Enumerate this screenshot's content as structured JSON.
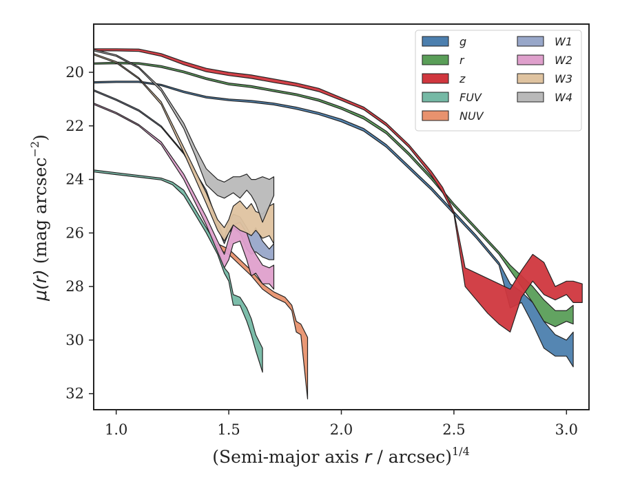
{
  "chart_data": {
    "type": "area",
    "x_label_prefix": "(Semi-major axis ",
    "x_label_var": "r",
    "x_label_suffix": " / arcsec)",
    "x_label_exp": "1/4",
    "y_label_prefix": "μ(",
    "y_label_var": "r",
    "y_label_suffix": ") (mag arcsec",
    "y_label_exp": "−2",
    "y_label_close": ")",
    "xlim": [
      0.9,
      3.1
    ],
    "ylim": [
      32.6,
      18.2
    ],
    "x_ticks": [
      1.0,
      1.5,
      2.0,
      2.5,
      3.0
    ],
    "x_tick_labels": [
      "1.0",
      "1.5",
      "2.0",
      "2.5",
      "3.0"
    ],
    "y_ticks": [
      20,
      22,
      24,
      26,
      28,
      30,
      32
    ],
    "y_tick_labels": [
      "20",
      "22",
      "24",
      "26",
      "28",
      "30",
      "32"
    ],
    "y_inverted": true,
    "grid": false,
    "legend_position": "top-right",
    "legend_columns": 2,
    "series": [
      {
        "name": "g",
        "color": "#4c7fae",
        "x": [
          0.9,
          1.0,
          1.1,
          1.2,
          1.3,
          1.4,
          1.5,
          1.6,
          1.7,
          1.8,
          1.9,
          2.0,
          2.1,
          2.2,
          2.3,
          2.4,
          2.5,
          2.6,
          2.7,
          2.75,
          2.8,
          2.85,
          2.9,
          2.95,
          3.0,
          3.03
        ],
        "lower": [
          20.35,
          20.33,
          20.33,
          20.45,
          20.7,
          20.9,
          21.0,
          21.05,
          21.15,
          21.3,
          21.5,
          21.75,
          22.1,
          22.7,
          23.5,
          24.3,
          25.2,
          26.1,
          27.1,
          27.9,
          28.2,
          28.6,
          29.3,
          29.8,
          30.0,
          29.7
        ],
        "upper": [
          20.4,
          20.38,
          20.38,
          20.5,
          20.76,
          20.96,
          21.06,
          21.12,
          21.22,
          21.38,
          21.58,
          21.85,
          22.2,
          22.8,
          23.6,
          24.4,
          25.3,
          26.2,
          27.2,
          28.8,
          28.6,
          29.4,
          30.3,
          30.6,
          30.6,
          31.0
        ]
      },
      {
        "name": "r",
        "color": "#5a9e58",
        "x": [
          0.9,
          1.0,
          1.1,
          1.2,
          1.3,
          1.4,
          1.5,
          1.6,
          1.7,
          1.8,
          1.9,
          2.0,
          2.1,
          2.2,
          2.3,
          2.4,
          2.5,
          2.6,
          2.7,
          2.75,
          2.8,
          2.85,
          2.9,
          2.95,
          3.0,
          3.03
        ],
        "lower": [
          19.65,
          19.62,
          19.64,
          19.75,
          19.95,
          20.2,
          20.4,
          20.5,
          20.65,
          20.8,
          21.0,
          21.3,
          21.65,
          22.2,
          23.0,
          23.9,
          24.9,
          25.8,
          26.7,
          27.2,
          27.6,
          28.0,
          28.5,
          28.9,
          28.9,
          28.7
        ],
        "upper": [
          19.7,
          19.68,
          19.7,
          19.82,
          20.02,
          20.27,
          20.47,
          20.57,
          20.72,
          20.87,
          21.08,
          21.38,
          21.75,
          22.3,
          23.1,
          24.0,
          25.0,
          25.9,
          26.8,
          27.4,
          28.0,
          28.6,
          29.3,
          29.5,
          29.3,
          29.4
        ]
      },
      {
        "name": "z",
        "color": "#d0373e",
        "x": [
          0.9,
          1.0,
          1.1,
          1.2,
          1.3,
          1.4,
          1.5,
          1.6,
          1.7,
          1.8,
          1.9,
          2.0,
          2.1,
          2.2,
          2.3,
          2.4,
          2.45,
          2.5,
          2.55,
          2.6,
          2.65,
          2.7,
          2.75,
          2.8,
          2.85,
          2.9,
          2.95,
          3.0,
          3.03,
          3.07
        ],
        "lower": [
          19.12,
          19.12,
          19.13,
          19.3,
          19.6,
          19.85,
          20.0,
          20.1,
          20.25,
          20.4,
          20.6,
          20.95,
          21.3,
          21.9,
          22.7,
          23.7,
          24.3,
          25.2,
          27.3,
          27.5,
          27.7,
          27.9,
          28.1,
          27.4,
          26.8,
          27.1,
          28.0,
          27.8,
          27.8,
          27.9
        ],
        "upper": [
          19.2,
          19.2,
          19.22,
          19.4,
          19.72,
          19.98,
          20.12,
          20.23,
          20.38,
          20.52,
          20.72,
          21.05,
          21.4,
          22.0,
          22.8,
          23.85,
          24.5,
          25.3,
          28.0,
          28.5,
          29.0,
          29.4,
          29.7,
          28.4,
          27.8,
          28.3,
          28.5,
          28.3,
          28.6,
          28.6
        ]
      },
      {
        "name": "FUV",
        "color": "#75b9a5",
        "x": [
          0.9,
          1.0,
          1.1,
          1.2,
          1.25,
          1.3,
          1.35,
          1.4,
          1.45,
          1.48,
          1.5,
          1.52,
          1.55,
          1.58,
          1.6,
          1.62,
          1.65
        ],
        "lower": [
          23.65,
          23.75,
          23.85,
          23.95,
          24.1,
          24.4,
          25.1,
          25.8,
          26.5,
          27.3,
          27.5,
          28.3,
          28.4,
          28.8,
          29.2,
          29.8,
          30.3
        ],
        "upper": [
          23.72,
          23.82,
          23.92,
          24.02,
          24.2,
          24.6,
          25.3,
          26.0,
          26.8,
          27.5,
          27.8,
          28.7,
          28.7,
          29.3,
          29.8,
          30.4,
          31.2
        ]
      },
      {
        "name": "NUV",
        "color": "#e8926e",
        "x": [
          1.45,
          1.5,
          1.55,
          1.6,
          1.65,
          1.7,
          1.75,
          1.78,
          1.8,
          1.82,
          1.85
        ],
        "lower": [
          26.4,
          26.6,
          27.0,
          27.4,
          27.9,
          28.2,
          28.4,
          28.7,
          29.3,
          29.4,
          29.9
        ],
        "upper": [
          26.6,
          26.8,
          27.2,
          27.6,
          28.1,
          28.4,
          28.6,
          28.9,
          29.7,
          29.8,
          32.2
        ]
      },
      {
        "name": "W1",
        "color": "#98a7c9",
        "x": [
          0.9,
          1.0,
          1.1,
          1.2,
          1.3,
          1.4,
          1.45,
          1.48,
          1.5,
          1.52,
          1.55,
          1.58,
          1.6,
          1.62,
          1.65,
          1.68,
          1.7
        ],
        "lower": [
          20.65,
          21.0,
          21.4,
          22.0,
          23.0,
          24.4,
          25.6,
          26.2,
          25.6,
          25.3,
          25.4,
          25.8,
          26.1,
          25.8,
          26.3,
          26.6,
          26.4
        ],
        "upper": [
          20.7,
          21.05,
          21.45,
          22.05,
          23.05,
          24.5,
          25.8,
          26.4,
          26.0,
          25.8,
          26.0,
          26.6,
          26.8,
          26.7,
          26.9,
          27.0,
          27.0
        ]
      },
      {
        "name": "W2",
        "color": "#dfa0cc",
        "x": [
          0.9,
          1.0,
          1.1,
          1.2,
          1.3,
          1.4,
          1.45,
          1.48,
          1.5,
          1.52,
          1.55,
          1.58,
          1.6,
          1.62,
          1.65,
          1.68,
          1.7
        ],
        "lower": [
          21.15,
          21.5,
          21.95,
          22.6,
          23.8,
          25.4,
          26.3,
          26.8,
          26.2,
          25.7,
          25.6,
          26.0,
          26.5,
          26.8,
          27.2,
          27.3,
          27.2
        ],
        "upper": [
          21.2,
          21.55,
          22.0,
          22.7,
          24.0,
          25.7,
          26.7,
          27.3,
          27.0,
          26.4,
          26.3,
          27.0,
          27.6,
          27.5,
          27.9,
          27.9,
          28.1
        ]
      },
      {
        "name": "W3",
        "color": "#dfc3a0",
        "x": [
          0.9,
          1.0,
          1.1,
          1.2,
          1.3,
          1.4,
          1.45,
          1.48,
          1.5,
          1.52,
          1.55,
          1.58,
          1.6,
          1.62,
          1.65,
          1.68,
          1.7
        ],
        "lower": [
          19.3,
          19.6,
          20.2,
          21.1,
          22.8,
          24.5,
          25.5,
          25.8,
          25.5,
          25.0,
          24.8,
          25.1,
          24.9,
          25.2,
          25.3,
          25.0,
          24.9
        ],
        "upper": [
          19.35,
          19.65,
          20.25,
          21.2,
          23.0,
          24.9,
          25.9,
          26.3,
          26.0,
          25.7,
          25.9,
          26.0,
          26.1,
          25.9,
          26.2,
          26.1,
          26.4
        ]
      },
      {
        "name": "W4",
        "color": "#b9b9b9",
        "x": [
          0.9,
          1.0,
          1.1,
          1.2,
          1.3,
          1.35,
          1.4,
          1.45,
          1.48,
          1.5,
          1.52,
          1.55,
          1.58,
          1.6,
          1.62,
          1.65,
          1.68,
          1.7
        ],
        "lower": [
          19.15,
          19.35,
          19.8,
          20.6,
          21.9,
          22.8,
          23.6,
          24.0,
          24.1,
          24.0,
          23.9,
          23.9,
          23.8,
          24.0,
          24.0,
          23.9,
          24.0,
          23.9
        ],
        "upper": [
          19.2,
          19.4,
          19.85,
          20.7,
          22.1,
          23.1,
          24.2,
          24.6,
          24.7,
          24.6,
          24.5,
          24.7,
          24.4,
          24.6,
          24.9,
          25.6,
          25.0,
          24.6
        ]
      }
    ]
  }
}
